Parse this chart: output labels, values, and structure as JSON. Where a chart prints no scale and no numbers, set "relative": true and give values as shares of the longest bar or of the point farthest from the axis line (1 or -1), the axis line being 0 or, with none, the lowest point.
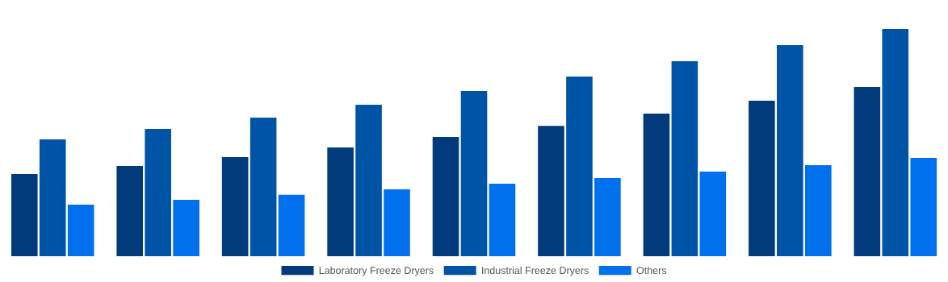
{
  "chart_data": {
    "type": "bar",
    "relative": true,
    "categories": [
      null,
      null,
      null,
      null,
      null,
      null,
      null,
      null,
      null
    ],
    "series": [
      {
        "name": "Laboratory Freeze Dryers",
        "color": "#023b7b",
        "values": [
          0.362,
          0.397,
          0.436,
          0.479,
          0.525,
          0.574,
          0.628,
          0.684,
          0.745
        ]
      },
      {
        "name": "Industrial Freeze Dryers",
        "color": "#0054a6",
        "values": [
          0.514,
          0.56,
          0.61,
          0.667,
          0.727,
          0.791,
          0.858,
          0.929,
          1
        ]
      },
      {
        "name": "Others",
        "color": "#0070ec",
        "values": [
          0.227,
          0.248,
          0.27,
          0.294,
          0.319,
          0.344,
          0.372,
          0.401,
          0.433
        ]
      }
    ],
    "legend": "bottom",
    "grid": false
  }
}
